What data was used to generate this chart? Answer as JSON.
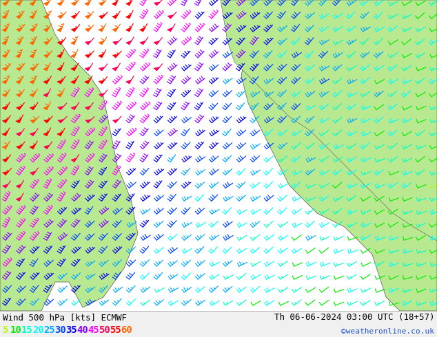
{
  "title_left": "Wind 500 hPa [kts] ECMWF",
  "title_right": "Th 06-06-2024 03:00 UTC (18+57)",
  "credit": "©weatheronline.co.uk",
  "legend_values": [
    5,
    10,
    15,
    20,
    25,
    30,
    35,
    40,
    45,
    50,
    55,
    60
  ],
  "legend_colors": [
    "#aaff00",
    "#00ee00",
    "#00ffcc",
    "#00ffff",
    "#00aaff",
    "#0044ff",
    "#0000ee",
    "#8800ff",
    "#ff00ff",
    "#ff0055",
    "#ff0000",
    "#ff6600"
  ],
  "bg_color": "#ffffff",
  "bottom_bar_height": 38,
  "map_bg": "#f0f0f0",
  "land_color": "#b8e890",
  "sea_color": "#ffffff",
  "title_fontsize": 9,
  "credit_fontsize": 8,
  "legend_fontsize": 10,
  "fig_width": 6.34,
  "fig_height": 4.9,
  "dpi": 100
}
